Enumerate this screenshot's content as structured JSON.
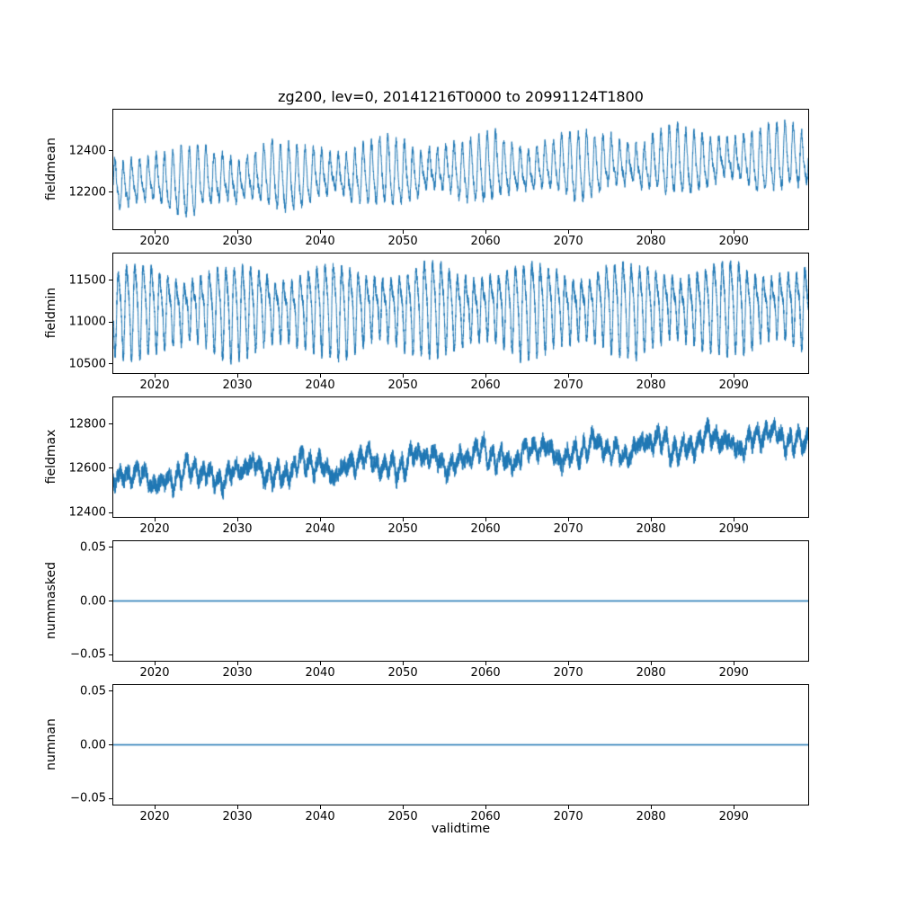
{
  "title": "zg200, lev=0, 20141216T0000 to 20991124T1800",
  "xlabel": "validtime",
  "line_color": "#1f77b4",
  "x_axis": {
    "lim": [
      2015.0,
      2099.0
    ],
    "ticks": [
      2020,
      2030,
      2040,
      2050,
      2060,
      2070,
      2080,
      2090
    ],
    "tick_labels": [
      "2020",
      "2030",
      "2040",
      "2050",
      "2060",
      "2070",
      "2080",
      "2090"
    ]
  },
  "chart_data": [
    {
      "type": "line",
      "name": "fieldmean",
      "ylabel": "fieldmean",
      "ylim": [
        12020,
        12600
      ],
      "yticks": [
        {
          "v": 12200,
          "label": "12200"
        },
        {
          "v": 12400,
          "label": "12400"
        }
      ],
      "series": {
        "kind": "seasonal",
        "n": 4000,
        "base_start": 12240,
        "base_end": 12365,
        "amp": 115,
        "amp_var": 35,
        "h2": 0.25,
        "noise": 22,
        "wander": 25,
        "seed": 7
      },
      "summary": "Noisy annual cycle of ~±130 around a mean rising from ~12240 in 2015 to ~12365 by 2099; overall range ~12050-12540"
    },
    {
      "type": "line",
      "name": "fieldmin",
      "ylabel": "fieldmin",
      "ylim": [
        10390,
        11820
      ],
      "yticks": [
        {
          "v": 10500,
          "label": "10500"
        },
        {
          "v": 11000,
          "label": "11000"
        },
        {
          "v": 11500,
          "label": "11500"
        }
      ],
      "series": {
        "kind": "seasonal",
        "n": 8000,
        "base_start": 11160,
        "base_end": 11200,
        "amp": 400,
        "amp_var": 110,
        "h2": 0.3,
        "noise": 55,
        "wander": 40,
        "seed": 13
      },
      "summary": "Dense high-amplitude annual oscillation between ~10550 and ~11800 around ~11180, nearly constant over 2015-2099"
    },
    {
      "type": "line",
      "name": "fieldmax",
      "ylabel": "fieldmax",
      "ylim": [
        12380,
        12920
      ],
      "yticks": [
        {
          "v": 12400,
          "label": "12400"
        },
        {
          "v": 12600,
          "label": "12600"
        },
        {
          "v": 12800,
          "label": "12800"
        }
      ],
      "series": {
        "kind": "seasonal",
        "n": 6000,
        "base_start": 12545,
        "base_end": 12745,
        "amp": 28,
        "amp_var": 10,
        "h2": 0.3,
        "noise": 38,
        "wander": 60,
        "seed": 21
      },
      "summary": "Noisy band rising from ~12550 (2015) to ~12750 (2099); range ~12420-12900"
    },
    {
      "type": "line",
      "name": "nummasked",
      "ylabel": "nummasked",
      "ylim": [
        -0.0558,
        0.0558
      ],
      "yticks": [
        {
          "v": -0.05,
          "label": "−0.05"
        },
        {
          "v": 0,
          "label": "0.00"
        },
        {
          "v": 0.05,
          "label": "0.05"
        }
      ],
      "series": {
        "kind": "flat",
        "value": 0
      },
      "summary": "Constant 0 for the whole period"
    },
    {
      "type": "line",
      "name": "numnan",
      "ylabel": "numnan",
      "ylim": [
        -0.0558,
        0.0558
      ],
      "yticks": [
        {
          "v": -0.05,
          "label": "−0.05"
        },
        {
          "v": 0,
          "label": "0.00"
        },
        {
          "v": 0.05,
          "label": "0.05"
        }
      ],
      "series": {
        "kind": "flat",
        "value": 0
      },
      "summary": "Constant 0 for the whole period"
    }
  ]
}
